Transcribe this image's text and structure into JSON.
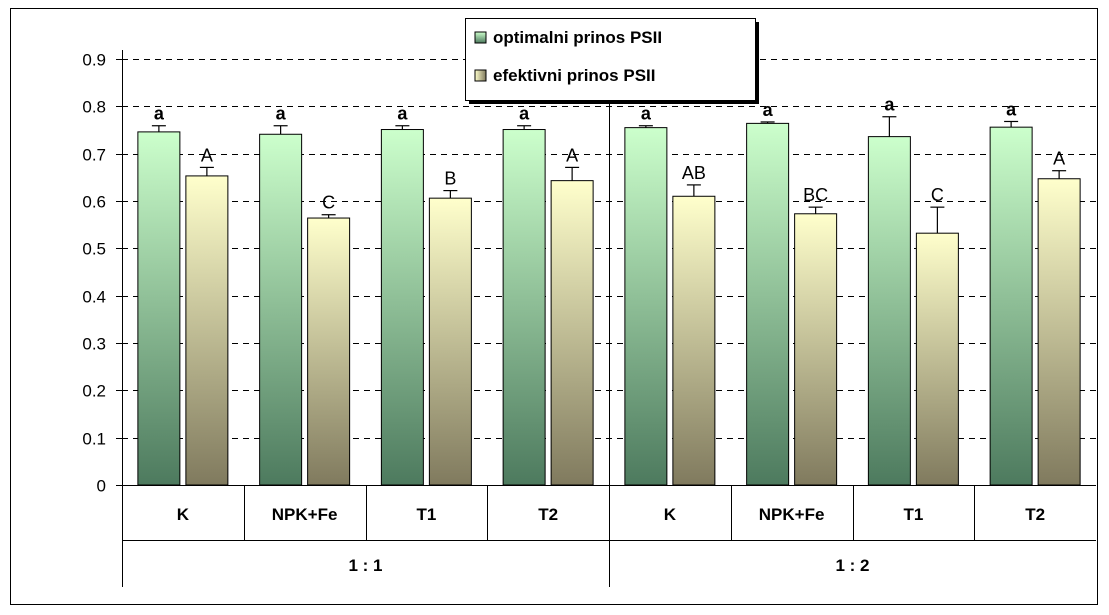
{
  "chart_data": {
    "type": "bar",
    "title": "",
    "xlabel": "",
    "ylabel": "",
    "ylim": [
      0,
      0.9
    ],
    "yticks": [
      "0",
      "0.1",
      "0.2",
      "0.3",
      "0.4",
      "0.5",
      "0.6",
      "0.7",
      "0.8",
      "0.9"
    ],
    "grid": "horizontal dashed",
    "legend_position": "top-center",
    "groups": [
      "1 : 1",
      "1 : 2"
    ],
    "categories": [
      "K",
      "NPK+Fe",
      "T1",
      "T2",
      "K",
      "NPK+Fe",
      "T1",
      "T2"
    ],
    "series": [
      {
        "name": "optimalni prinos PSII",
        "color_top": "#ccffcc",
        "color_bottom": "#4d7a5e",
        "values": [
          0.746,
          0.741,
          0.751,
          0.751,
          0.755,
          0.764,
          0.736,
          0.756
        ],
        "errors": [
          0.013,
          0.018,
          0.008,
          0.008,
          0.004,
          0.003,
          0.042,
          0.012
        ],
        "labels": [
          "a",
          "a",
          "a",
          "a",
          "a",
          "a",
          "a",
          "a"
        ]
      },
      {
        "name": "efektivni prinos PSII",
        "color_top": "#ffffcc",
        "color_bottom": "#807a5e",
        "values": [
          0.653,
          0.564,
          0.606,
          0.643,
          0.61,
          0.573,
          0.532,
          0.647
        ],
        "errors": [
          0.018,
          0.007,
          0.016,
          0.028,
          0.024,
          0.014,
          0.055,
          0.017
        ],
        "labels": [
          "A",
          "C",
          "B",
          "A",
          "AB",
          "BC",
          "C",
          "A"
        ]
      }
    ]
  }
}
